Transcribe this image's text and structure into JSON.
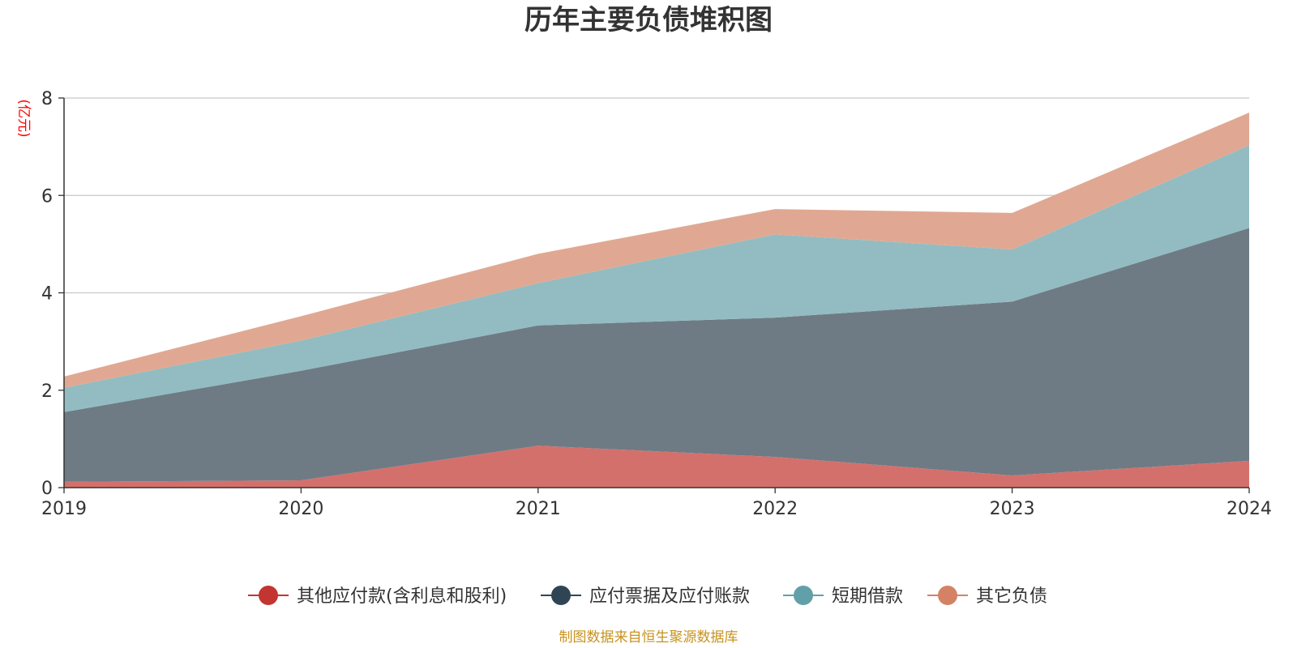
{
  "chart_data": {
    "type": "area",
    "stacked": true,
    "title": "历年主要负债堆积图",
    "ylabel": "(亿元)",
    "xlabel": "",
    "categories": [
      "2019",
      "2020",
      "2021",
      "2022",
      "2023",
      "2024"
    ],
    "ylim": [
      0,
      8
    ],
    "yticks": [
      "0",
      "2",
      "4",
      "6",
      "8"
    ],
    "grid": true,
    "legend_position": "bottom",
    "series": [
      {
        "name": "其他应付款(含利息和股利)",
        "color": "#c23531",
        "fill": "#d4706c",
        "values": [
          0.12,
          0.15,
          0.86,
          0.63,
          0.25,
          0.55
        ]
      },
      {
        "name": "应付票据及应付账款",
        "color": "#2f4554",
        "fill": "#6e7b85",
        "values": [
          1.43,
          2.25,
          2.47,
          2.86,
          3.57,
          4.78
        ]
      },
      {
        "name": "短期借款",
        "color": "#61a0a8",
        "fill": "#92bcc1",
        "values": [
          0.5,
          0.62,
          0.87,
          1.71,
          1.07,
          1.7
        ]
      },
      {
        "name": "其它负债",
        "color": "#d48265",
        "fill": "#e0a892",
        "values": [
          0.23,
          0.5,
          0.6,
          0.52,
          0.75,
          0.67
        ]
      }
    ],
    "source": "制图数据来自恒生聚源数据库",
    "colors": {
      "unit": "#ff0000",
      "source": "#c8921e",
      "grid": "#c8c8c8",
      "axis": "#333333"
    }
  }
}
